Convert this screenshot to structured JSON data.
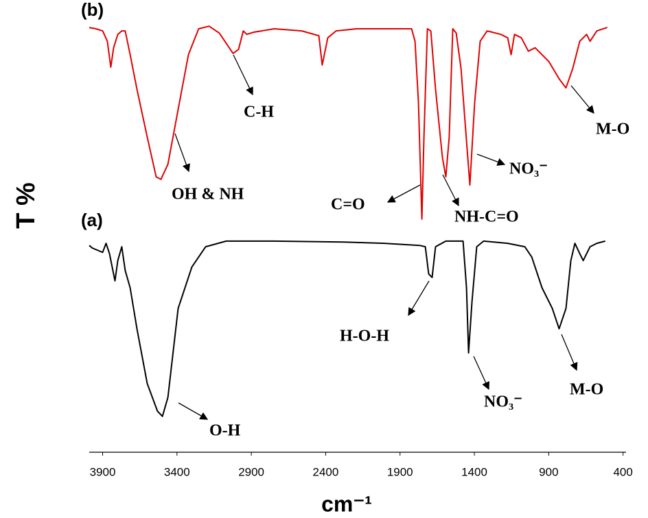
{
  "chart_data": {
    "type": "line",
    "x_label": "cm⁻¹",
    "y_label": "T %",
    "xlim": [
      3990,
      380
    ],
    "ylim": [
      0,
      100
    ],
    "xticks": [
      3900,
      3400,
      2900,
      2400,
      1900,
      1400,
      900,
      400
    ],
    "series": [
      {
        "name": "(b)",
        "color": "#e00000",
        "x": [
          3990,
          3945,
          3900,
          3868,
          3845,
          3826,
          3798,
          3771,
          3748,
          3715,
          3669,
          3600,
          3540,
          3508,
          3461,
          3392,
          3323,
          3254,
          3184,
          3115,
          3023,
          2986,
          2954,
          2930,
          2884,
          2746,
          2561,
          2446,
          2423,
          2386,
          2330,
          2192,
          1915,
          1822,
          1799,
          1776,
          1753,
          1739,
          1716,
          1693,
          1661,
          1615,
          1592,
          1569,
          1545,
          1522,
          1490,
          1430,
          1398,
          1361,
          1314,
          1222,
          1176,
          1153,
          1130,
          1084,
          1037,
          991,
          899,
          830,
          784,
          738,
          691,
          645,
          622,
          576,
          506
        ],
        "values": [
          98.4,
          98.1,
          97.6,
          95.2,
          89.2,
          93.7,
          96.8,
          97.6,
          97.6,
          92.1,
          84.1,
          73.0,
          63.8,
          63.2,
          66.7,
          79.4,
          92.1,
          98.1,
          98.7,
          97.1,
          92.4,
          93.3,
          97.6,
          96.8,
          97.3,
          98.1,
          97.6,
          96.5,
          89.7,
          96.0,
          97.6,
          98.1,
          98.1,
          98.1,
          95.2,
          81.0,
          54.0,
          73.0,
          98.1,
          97.6,
          84.1,
          68.3,
          63.8,
          73.0,
          98.1,
          97.1,
          88.9,
          61.9,
          81.0,
          95.2,
          97.6,
          96.8,
          96.0,
          92.1,
          96.8,
          96.0,
          92.9,
          93.7,
          90.5,
          86.5,
          84.4,
          88.9,
          95.2,
          96.8,
          95.2,
          97.6,
          98.4
        ]
      },
      {
        "name": "(a)",
        "color": "#000000",
        "x": [
          3990,
          3969,
          3900,
          3877,
          3854,
          3817,
          3798,
          3771,
          3748,
          3715,
          3669,
          3600,
          3531,
          3498,
          3461,
          3392,
          3300,
          3207,
          3069,
          2746,
          2284,
          2007,
          1767,
          1730,
          1707,
          1684,
          1661,
          1592,
          1476,
          1453,
          1439,
          1416,
          1384,
          1338,
          1176,
          1061,
          1014,
          945,
          876,
          830,
          784,
          751,
          724,
          691,
          668,
          622,
          576,
          520
        ],
        "values": [
          47.9,
          47.3,
          46.3,
          48.4,
          46.0,
          39.7,
          44.4,
          47.6,
          42.1,
          38.1,
          28.6,
          15.9,
          9.5,
          8.3,
          12.7,
          33.3,
          42.9,
          47.6,
          48.9,
          48.9,
          48.7,
          48.4,
          47.9,
          47.6,
          41.3,
          40.5,
          47.6,
          48.9,
          48.9,
          38.1,
          23.0,
          34.9,
          47.6,
          48.9,
          48.4,
          47.6,
          45.2,
          38.1,
          33.3,
          28.6,
          33.3,
          44.4,
          48.4,
          46.0,
          44.4,
          47.6,
          48.4,
          48.9
        ]
      }
    ],
    "annotations": [
      "C-H",
      "OH & NH",
      "C=O",
      "NH-C=O",
      "NO₃⁻",
      "M-O",
      "H-O-H",
      "NO₃⁻",
      "M-O",
      "O-H"
    ]
  }
}
